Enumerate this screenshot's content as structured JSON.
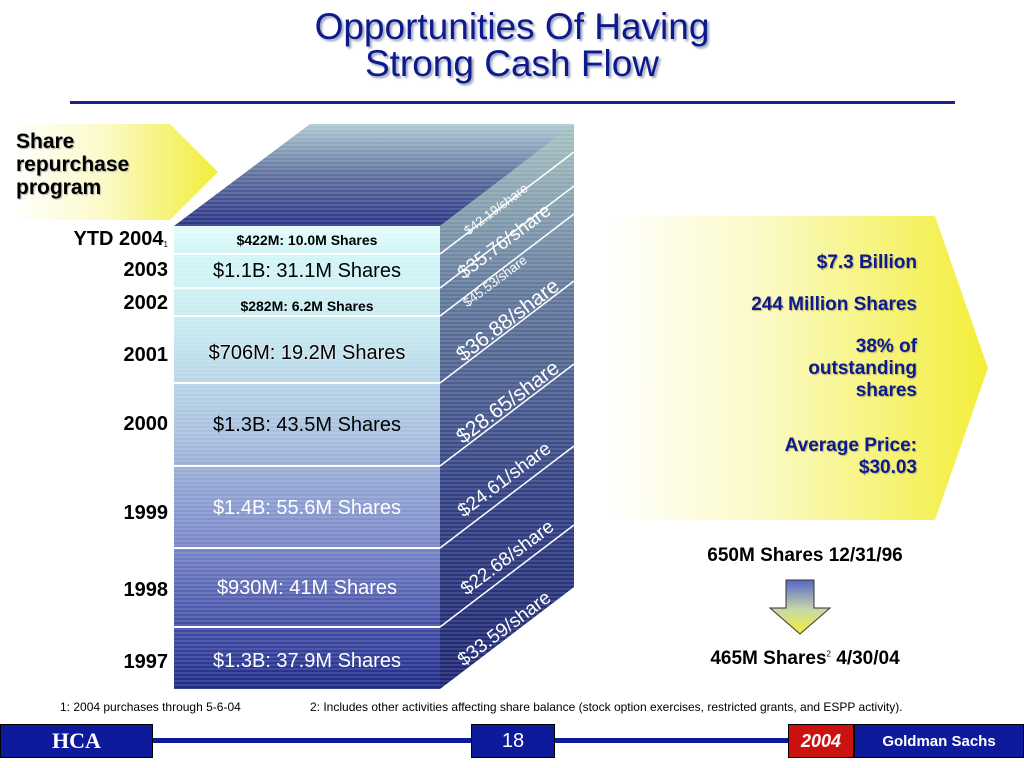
{
  "title": {
    "line1": "Opportunities Of Having",
    "line2": "Strong Cash Flow"
  },
  "callout": {
    "lines": [
      "Share",
      "repurchase",
      "program"
    ]
  },
  "segments": [
    {
      "year": "YTD 2004",
      "year_note": "1",
      "label": "$422M: 10.0M Shares",
      "price": "$42.19/share"
    },
    {
      "year": "2003",
      "year_note": "",
      "label": "$1.1B: 31.1M Shares",
      "price": "$35.76/share"
    },
    {
      "year": "2002",
      "year_note": "",
      "label": "$282M: 6.2M Shares",
      "price": "$45.53/share"
    },
    {
      "year": "2001",
      "year_note": "",
      "label": "$706M: 19.2M Shares",
      "price": "$36.88/share"
    },
    {
      "year": "2000",
      "year_note": "",
      "label": "$1.3B: 43.5M Shares",
      "price": "$28.65/share"
    },
    {
      "year": "1999",
      "year_note": "",
      "label": "$1.4B: 55.6M Shares",
      "price": "$24.61/share"
    },
    {
      "year": "1998",
      "year_note": "",
      "label": "$930M: 41M Shares",
      "price": "$22.68/share"
    },
    {
      "year": "1997",
      "year_note": "",
      "label": "$1.3B: 37.9M Shares",
      "price": "$33.59/share"
    }
  ],
  "summary": {
    "total": "$7.3 Billion",
    "shares": "244 Million Shares",
    "pct_line1": "38% of",
    "pct_line2": "outstanding",
    "pct_line3": "shares",
    "avg_line1": "Average Price:",
    "avg_line2": "$30.03"
  },
  "shares_change": {
    "before": "650M Shares 12/31/96",
    "after_prefix": "465M Shares",
    "after_note": "2",
    "after_suffix": " 4/30/04"
  },
  "footnotes": {
    "note1": "1: 2004 purchases through 5-6-04",
    "note2": "2: Includes other activities affecting share balance (stock option exercises, restricted grants, and ESPP activity)."
  },
  "footer": {
    "left": "HCA",
    "page": "18",
    "year": "2004",
    "right": "Goldman Sachs"
  },
  "colors": {
    "title": "#0d1a8c",
    "footer_blue": "#0d1a9c",
    "footer_red": "#cc1111",
    "callout_yellow": "#f2ee3a"
  }
}
